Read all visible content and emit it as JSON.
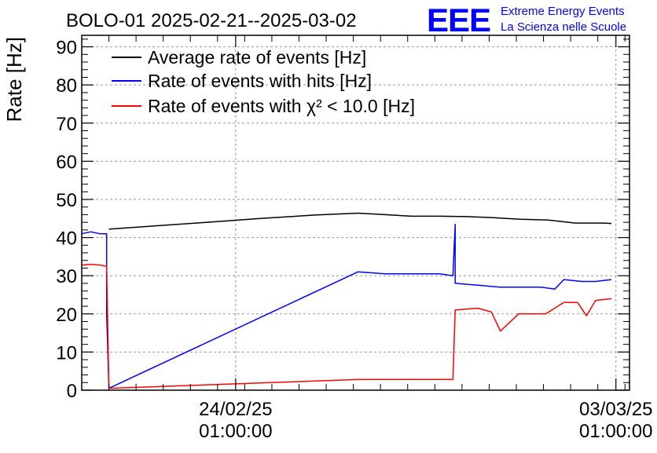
{
  "chart_data": {
    "type": "line",
    "title": "BOLO-01 2025-02-21--2025-03-02",
    "ylabel": "Rate [Hz]",
    "xlabel": "",
    "ylim": [
      0,
      93
    ],
    "xlim": [
      "2025-02-21 05:00",
      "2025-03-03 07:00"
    ],
    "y_ticks": [
      0,
      10,
      20,
      30,
      40,
      50,
      60,
      70,
      80,
      90
    ],
    "x_ticks": [
      {
        "x": "2025-02-24 01:00",
        "line1": "24/02/25",
        "line2": "01:00:00"
      },
      {
        "x": "2025-03-03 01:00",
        "line1": "03/03/25",
        "line2": "01:00:00"
      }
    ],
    "grid": true,
    "legend_position": "top-left",
    "series": [
      {
        "name": "Average rate of events [Hz]",
        "color": "#000000",
        "points": [
          [
            "2025-02-21 17:00",
            42.2
          ],
          [
            "2025-02-22 12:00",
            43.0
          ],
          [
            "2025-02-23 12:00",
            44.0
          ],
          [
            "2025-02-24 12:00",
            45.0
          ],
          [
            "2025-02-25 12:00",
            45.9
          ],
          [
            "2025-02-26 07:00",
            46.4
          ],
          [
            "2025-02-26 19:00",
            46.0
          ],
          [
            "2025-02-27 07:00",
            45.6
          ],
          [
            "2025-02-27 19:00",
            45.6
          ],
          [
            "2025-02-28 07:00",
            45.5
          ],
          [
            "2025-02-28 19:00",
            45.2
          ],
          [
            "2025-03-01 07:00",
            44.8
          ],
          [
            "2025-03-01 19:00",
            44.6
          ],
          [
            "2025-03-02 07:00",
            43.8
          ],
          [
            "2025-03-02 19:00",
            43.8
          ],
          [
            "2025-03-02 23:00",
            43.7
          ]
        ]
      },
      {
        "name": "Rate of events with hits [Hz]",
        "color": "#0000ff",
        "points": [
          [
            "2025-02-21 05:00",
            41.0
          ],
          [
            "2025-02-21 09:00",
            41.5
          ],
          [
            "2025-02-21 13:00",
            41.0
          ],
          [
            "2025-02-21 16:00",
            41.0
          ],
          [
            "2025-02-21 16:00",
            20.0
          ],
          [
            "2025-02-21 17:00",
            0.5
          ],
          [
            "2025-02-26 07:00",
            31.0
          ],
          [
            "2025-02-26 19:00",
            30.5
          ],
          [
            "2025-02-27 07:00",
            30.5
          ],
          [
            "2025-02-27 19:00",
            30.5
          ],
          [
            "2025-02-28 01:00",
            30.0
          ],
          [
            "2025-02-28 02:00",
            43.5
          ],
          [
            "2025-02-28 02:00",
            28.0
          ],
          [
            "2025-02-28 12:00",
            27.5
          ],
          [
            "2025-02-28 22:00",
            27.0
          ],
          [
            "2025-03-01 07:00",
            27.0
          ],
          [
            "2025-03-01 16:00",
            27.0
          ],
          [
            "2025-03-01 22:00",
            26.5
          ],
          [
            "2025-03-02 02:00",
            29.0
          ],
          [
            "2025-03-02 10:00",
            28.5
          ],
          [
            "2025-03-02 16:00",
            28.5
          ],
          [
            "2025-03-02 23:00",
            29.0
          ]
        ]
      },
      {
        "name": "Rate of events with χ² < 10.0 [Hz]",
        "color": "#ff0000",
        "points": [
          [
            "2025-02-21 05:00",
            32.8
          ],
          [
            "2025-02-21 09:00",
            33.0
          ],
          [
            "2025-02-21 13:00",
            32.8
          ],
          [
            "2025-02-21 16:00",
            32.5
          ],
          [
            "2025-02-21 17:00",
            0.5
          ],
          [
            "2025-02-26 07:00",
            2.8
          ],
          [
            "2025-02-27 07:00",
            2.8
          ],
          [
            "2025-02-28 01:00",
            2.8
          ],
          [
            "2025-02-28 02:00",
            21.0
          ],
          [
            "2025-02-28 12:00",
            21.5
          ],
          [
            "2025-02-28 18:00",
            20.5
          ],
          [
            "2025-02-28 22:00",
            15.5
          ],
          [
            "2025-03-01 06:00",
            20.0
          ],
          [
            "2025-03-01 18:00",
            20.0
          ],
          [
            "2025-03-02 02:00",
            23.0
          ],
          [
            "2025-03-02 08:00",
            23.0
          ],
          [
            "2025-03-02 12:00",
            19.5
          ],
          [
            "2025-03-02 16:00",
            23.5
          ],
          [
            "2025-03-02 23:00",
            24.0
          ]
        ]
      }
    ]
  },
  "logo": {
    "mark": "EEE",
    "line1": "Extreme Energy Events",
    "line2": "La Scienza nelle Scuole",
    "color": "#0000ff"
  },
  "colors": {
    "frame": "#000000",
    "grid": "#999999",
    "background": "#ffffff"
  }
}
